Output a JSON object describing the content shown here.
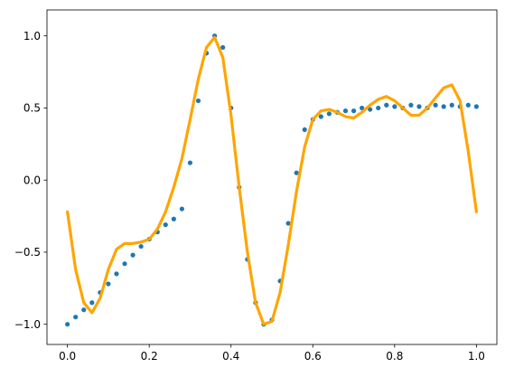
{
  "chart_data": {
    "type": "scatter",
    "xlim": [
      -0.05,
      1.05
    ],
    "ylim": [
      -1.14,
      1.18
    ],
    "x_ticks": [
      0.0,
      0.2,
      0.4,
      0.6,
      0.8,
      1.0
    ],
    "x_tick_labels": [
      "0.0",
      "0.2",
      "0.4",
      "0.6",
      "0.8",
      "1.0"
    ],
    "y_ticks": [
      -1.0,
      -0.5,
      0.0,
      0.5,
      1.0
    ],
    "y_tick_labels": [
      "−1.0",
      "−0.5",
      "0.0",
      "0.5",
      "1.0"
    ],
    "grid": false,
    "series": [
      {
        "kind": "scatter",
        "color": "#1f77b4",
        "x": [
          0.0,
          0.02,
          0.04,
          0.06,
          0.08,
          0.1,
          0.12,
          0.14,
          0.16,
          0.18,
          0.2,
          0.22,
          0.24,
          0.26,
          0.28,
          0.3,
          0.32,
          0.34,
          0.36,
          0.38,
          0.4,
          0.42,
          0.44,
          0.46,
          0.48,
          0.5,
          0.52,
          0.54,
          0.56,
          0.58,
          0.6,
          0.62,
          0.64,
          0.66,
          0.68,
          0.7,
          0.72,
          0.74,
          0.76,
          0.78,
          0.8,
          0.82,
          0.84,
          0.86,
          0.88,
          0.9,
          0.92,
          0.94,
          0.96,
          0.98,
          1.0
        ],
        "y": [
          -1.0,
          -0.95,
          -0.9,
          -0.85,
          -0.78,
          -0.72,
          -0.65,
          -0.58,
          -0.52,
          -0.46,
          -0.41,
          -0.36,
          -0.31,
          -0.27,
          -0.2,
          0.12,
          0.55,
          0.88,
          1.0,
          0.92,
          0.5,
          -0.05,
          -0.55,
          -0.85,
          -1.0,
          -0.97,
          -0.7,
          -0.3,
          0.05,
          0.35,
          0.42,
          0.44,
          0.46,
          0.47,
          0.48,
          0.48,
          0.5,
          0.49,
          0.5,
          0.52,
          0.51,
          0.5,
          0.52,
          0.51,
          0.5,
          0.52,
          0.51,
          0.52,
          0.51,
          0.52,
          0.51
        ]
      },
      {
        "kind": "line",
        "color": "#ffa500",
        "x": [
          0.0,
          0.02,
          0.04,
          0.06,
          0.08,
          0.1,
          0.12,
          0.14,
          0.16,
          0.18,
          0.2,
          0.22,
          0.24,
          0.26,
          0.28,
          0.3,
          0.32,
          0.34,
          0.36,
          0.38,
          0.4,
          0.42,
          0.44,
          0.46,
          0.48,
          0.5,
          0.52,
          0.54,
          0.56,
          0.58,
          0.6,
          0.62,
          0.64,
          0.66,
          0.68,
          0.7,
          0.72,
          0.74,
          0.76,
          0.78,
          0.8,
          0.82,
          0.84,
          0.86,
          0.88,
          0.9,
          0.92,
          0.94,
          0.96,
          0.98,
          1.0
        ],
        "y": [
          -0.22,
          -0.62,
          -0.85,
          -0.92,
          -0.82,
          -0.62,
          -0.48,
          -0.44,
          -0.44,
          -0.43,
          -0.41,
          -0.34,
          -0.22,
          -0.05,
          0.15,
          0.42,
          0.7,
          0.92,
          0.99,
          0.85,
          0.45,
          -0.05,
          -0.5,
          -0.85,
          -1.0,
          -0.98,
          -0.78,
          -0.45,
          -0.08,
          0.23,
          0.42,
          0.48,
          0.49,
          0.47,
          0.44,
          0.43,
          0.47,
          0.52,
          0.56,
          0.58,
          0.55,
          0.5,
          0.45,
          0.45,
          0.5,
          0.57,
          0.64,
          0.66,
          0.55,
          0.2,
          -0.22
        ]
      }
    ]
  }
}
